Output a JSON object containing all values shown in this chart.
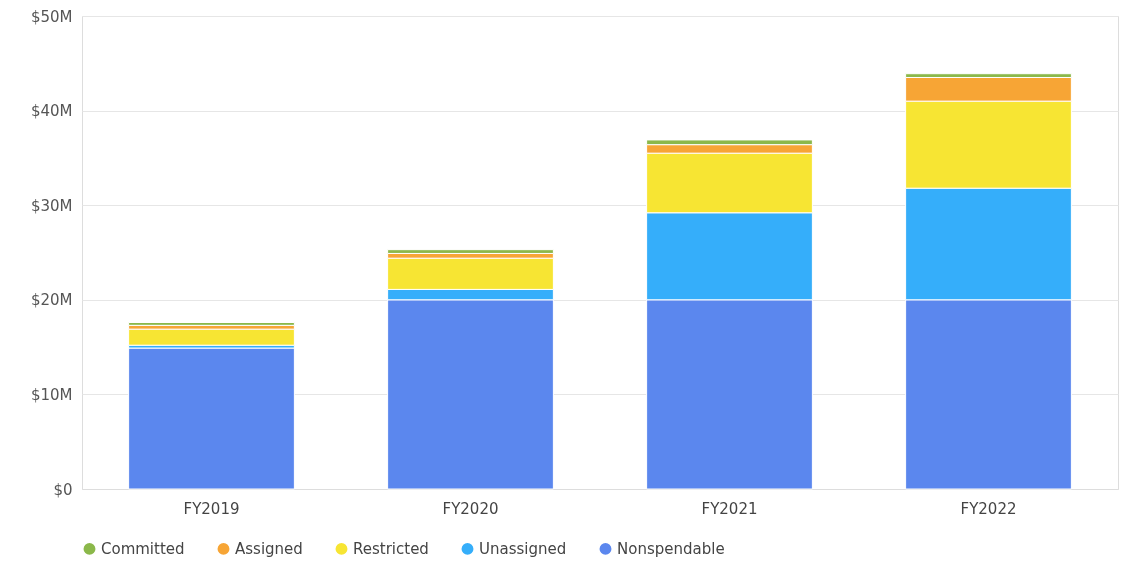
{
  "chart_data": {
    "type": "bar",
    "stacked": true,
    "categories": [
      "FY2019",
      "FY2020",
      "FY2021",
      "FY2022"
    ],
    "series": [
      {
        "name": "Nonspendable",
        "color": "#5b87ee",
        "values": [
          14.9,
          20.0,
          20.0,
          20.0
        ]
      },
      {
        "name": "Unassigned",
        "color": "#35aefa",
        "values": [
          0.3,
          1.1,
          9.2,
          11.8
        ]
      },
      {
        "name": "Restricted",
        "color": "#f7e533",
        "values": [
          1.7,
          3.3,
          6.3,
          9.2
        ]
      },
      {
        "name": "Assigned",
        "color": "#f7a535",
        "values": [
          0.4,
          0.5,
          0.9,
          2.5
        ]
      },
      {
        "name": "Committed",
        "color": "#8bb84a",
        "values": [
          0.3,
          0.4,
          0.5,
          0.4
        ]
      }
    ],
    "ylim": [
      0,
      50
    ],
    "yticks": [
      {
        "value": 0,
        "label": "$0"
      },
      {
        "value": 10,
        "label": "$10M"
      },
      {
        "value": 20,
        "label": "$20M"
      },
      {
        "value": 30,
        "label": "$30M"
      },
      {
        "value": 40,
        "label": "$40M"
      },
      {
        "value": 50,
        "label": "$50M"
      }
    ],
    "grid": "y",
    "legend": "bottom"
  }
}
